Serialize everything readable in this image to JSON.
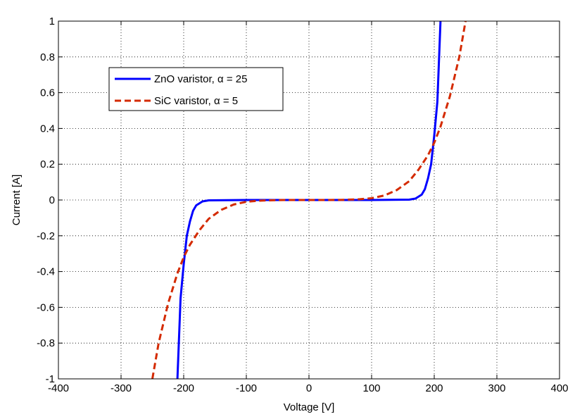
{
  "chart_data": {
    "type": "line",
    "title": "",
    "xlabel": "Voltage [V]",
    "ylabel": "Current [A]",
    "xlim": [
      -400,
      400
    ],
    "ylim": [
      -1,
      1
    ],
    "xticks": [
      -400,
      -300,
      -200,
      -100,
      0,
      100,
      200,
      300,
      400
    ],
    "xtick_labels": [
      "-400",
      "-300",
      "-200",
      "-100",
      "0",
      "100",
      "200",
      "300",
      "400"
    ],
    "yticks": [
      -1,
      -0.8,
      -0.6,
      -0.4,
      -0.2,
      0,
      0.2,
      0.4,
      0.6,
      0.8,
      1
    ],
    "ytick_labels": [
      "-1",
      "-0.8",
      "-0.6",
      "-0.4",
      "-0.2",
      "0",
      "0.2",
      "0.4",
      "0.6",
      "0.8",
      "1"
    ],
    "grid": true,
    "legend_position": "upper-left",
    "series": [
      {
        "name": "ZnO varistor, α = 25",
        "color": "#0000ff",
        "style": "solid",
        "x": [
          -210,
          -205,
          -200,
          -195,
          -190,
          -185,
          -180,
          -170,
          -160,
          -100,
          0,
          100,
          160,
          170,
          180,
          185,
          190,
          195,
          200,
          205,
          210
        ],
        "y": [
          -1.0,
          -0.55,
          -0.36,
          -0.2,
          -0.12,
          -0.06,
          -0.03,
          -0.008,
          -0.002,
          0,
          0,
          0,
          0.002,
          0.008,
          0.03,
          0.06,
          0.12,
          0.2,
          0.36,
          0.55,
          1.0
        ]
      },
      {
        "name": "SiC varistor, α = 5",
        "color": "#d42a00",
        "style": "dashed",
        "x": [
          -250,
          -240,
          -225,
          -210,
          -200,
          -190,
          -175,
          -160,
          -140,
          -120,
          -100,
          -80,
          -50,
          0,
          50,
          80,
          100,
          120,
          140,
          160,
          175,
          190,
          200,
          210,
          225,
          240,
          250
        ],
        "y": [
          -1.0,
          -0.8,
          -0.58,
          -0.41,
          -0.32,
          -0.25,
          -0.17,
          -0.105,
          -0.055,
          -0.025,
          -0.01,
          -0.004,
          -0.0003,
          0,
          0.0003,
          0.004,
          0.01,
          0.025,
          0.055,
          0.105,
          0.17,
          0.25,
          0.32,
          0.41,
          0.58,
          0.8,
          1.0
        ]
      }
    ]
  }
}
